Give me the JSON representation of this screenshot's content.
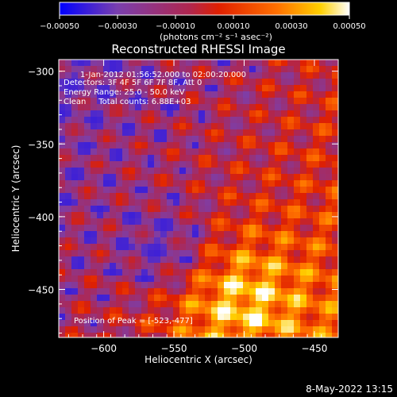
{
  "chart_data": {
    "type": "heatmap",
    "title": "Reconstructed RHESSI Image",
    "xlabel": "Heliocentric X (arcsec)",
    "ylabel": "Heliocentric Y (arcsec)",
    "xlim": [
      -632,
      -433
    ],
    "ylim": [
      -483,
      -292
    ],
    "x_ticks": [
      -600,
      -550,
      -500,
      -450
    ],
    "y_ticks": [
      -300,
      -350,
      -400,
      -450
    ],
    "x_tick_labels": [
      "−600",
      "−550",
      "−500",
      "−450"
    ],
    "y_tick_labels": [
      "−300",
      "−350",
      "−400",
      "−450"
    ],
    "colorbar": {
      "min": -0.0005,
      "max": 0.0005,
      "ticks": [
        -0.0005,
        -0.0003,
        -0.0001,
        0.0001,
        0.0003,
        0.0005
      ],
      "tick_labels": [
        "−0.00050",
        "−0.00030",
        "−0.00010",
        "0.00010",
        "0.00030",
        "0.00050"
      ],
      "units_label": "(photons cm⁻² s⁻¹ asec⁻²)",
      "colors": [
        "#0000ff",
        "#7a3fae",
        "#b0264e",
        "#e02000",
        "#ff7000",
        "#ffd000",
        "#ffffff"
      ]
    },
    "annotations": [
      "1-Jan-2012 01:56:52.000 to 02:00:20.000",
      "Detectors: 3F 4F 5F 6F 7F 8F, Att 0",
      "Energy Range: 25.0 - 50.0 keV",
      "Clean     Total counts: 6.88E+03",
      "Position of Peak = [-523,-477]"
    ],
    "peak": {
      "x": -523,
      "y": -477
    },
    "grid": false
  },
  "footer": {
    "timestamp": "8-May-2022 13:15"
  }
}
